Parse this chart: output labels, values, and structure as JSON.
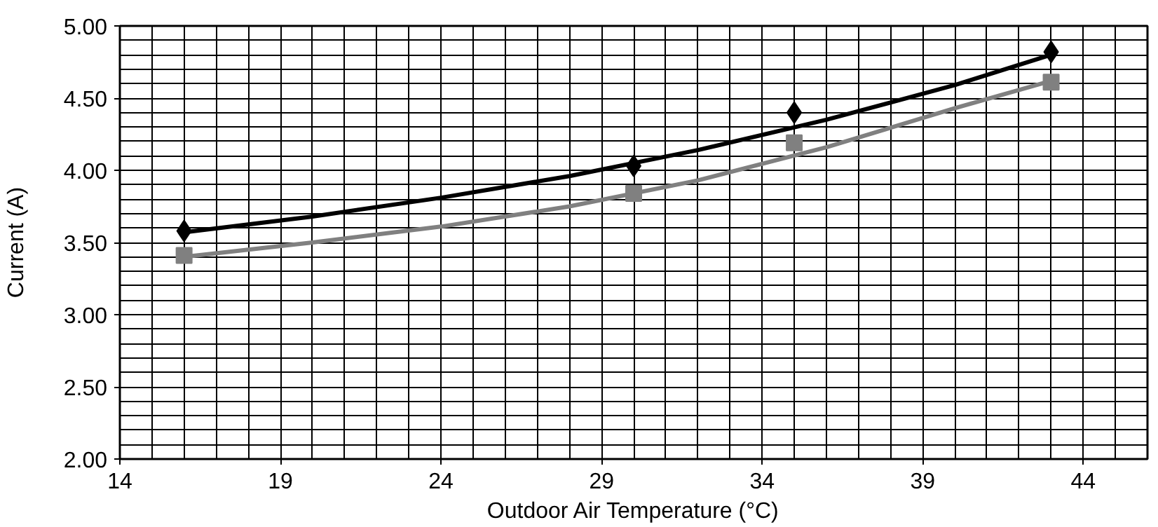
{
  "chart_data": {
    "type": "scatter",
    "xlabel": "Outdoor Air Temperature (°C)",
    "ylabel": "Current (A)",
    "xlim": [
      14,
      46
    ],
    "xticks": [
      14,
      19,
      24,
      29,
      34,
      39,
      44
    ],
    "ylim": [
      2.0,
      5.0
    ],
    "yticks": [
      {
        "value": 2.0,
        "label": "2.00"
      },
      {
        "value": 2.5,
        "label": "2.50"
      },
      {
        "value": 3.0,
        "label": "3.00"
      },
      {
        "value": 3.5,
        "label": "3.50"
      },
      {
        "value": 4.0,
        "label": "4.00"
      },
      {
        "value": 4.5,
        "label": "4.50"
      },
      {
        "value": 5.0,
        "label": "5.00"
      }
    ],
    "grid": true,
    "series": [
      {
        "type": "line",
        "color": "#000000",
        "marker": "none",
        "x": [
          16,
          20,
          24,
          28,
          32,
          36,
          40,
          43
        ],
        "values": [
          3.57,
          3.68,
          3.81,
          3.96,
          4.14,
          4.35,
          4.59,
          4.8
        ]
      },
      {
        "type": "line",
        "color": "#808080",
        "marker": "none",
        "x": [
          16,
          20,
          24,
          28,
          32,
          36,
          40,
          43
        ],
        "values": [
          3.4,
          3.5,
          3.61,
          3.75,
          3.93,
          4.16,
          4.43,
          4.62
        ]
      },
      {
        "color": "#000000",
        "marker": "diamond",
        "x": [
          16,
          30,
          35,
          43
        ],
        "values": [
          3.58,
          4.03,
          4.4,
          4.82
        ]
      },
      {
        "color": "#808080",
        "marker": "square",
        "x": [
          16,
          30,
          35,
          43
        ],
        "values": [
          3.41,
          3.84,
          4.19,
          4.61
        ]
      }
    ]
  }
}
